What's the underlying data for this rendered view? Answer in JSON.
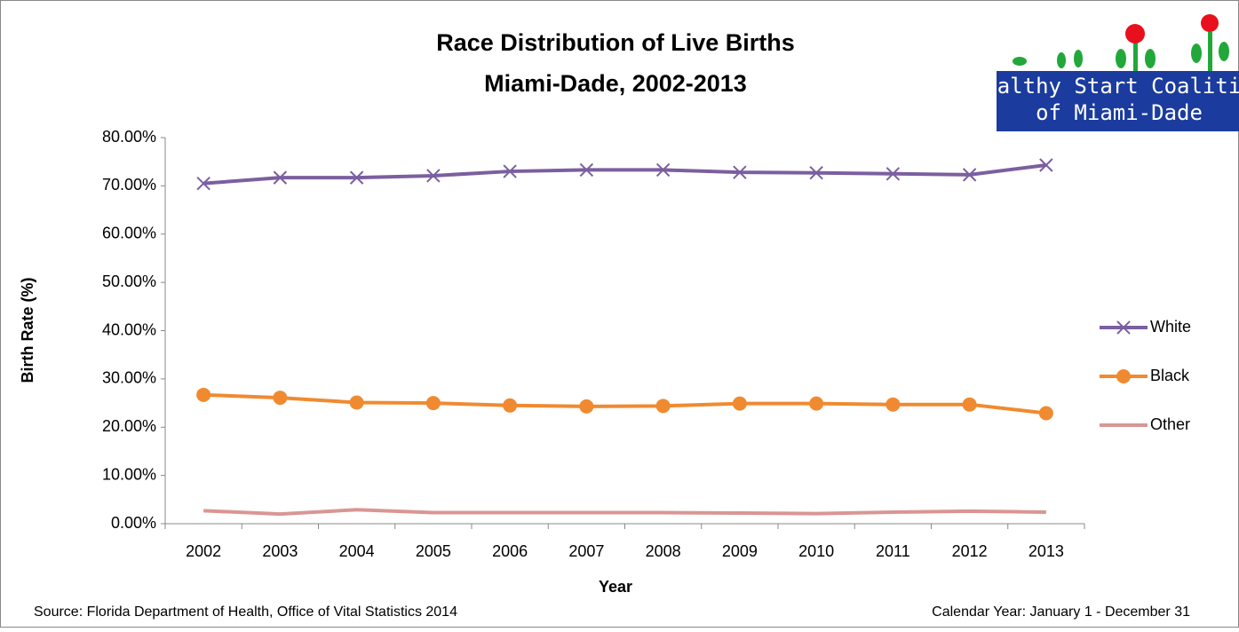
{
  "chart_data": {
    "type": "line",
    "title": "Race Distribution of Live Births",
    "subtitle": "Miami-Dade, 2002-2013",
    "x_label": "Year",
    "y_label": "Birth Rate (%)",
    "categories": [
      "2002",
      "2003",
      "2004",
      "2005",
      "2006",
      "2007",
      "2008",
      "2009",
      "2010",
      "2011",
      "2012",
      "2013"
    ],
    "series": [
      {
        "name": "White",
        "color": "#7b5fa0",
        "marker": "x",
        "values": [
          70.5,
          71.7,
          71.7,
          72.1,
          73.0,
          73.3,
          73.3,
          72.8,
          72.7,
          72.5,
          72.3,
          74.3
        ]
      },
      {
        "name": "Black",
        "color": "#f08a30",
        "marker": "circle",
        "values": [
          26.7,
          26.1,
          25.1,
          25.0,
          24.5,
          24.3,
          24.4,
          24.9,
          24.9,
          24.7,
          24.7,
          22.9
        ]
      },
      {
        "name": "Other",
        "color": "#d99694",
        "marker": "none",
        "values": [
          2.7,
          2.0,
          2.9,
          2.3,
          2.3,
          2.3,
          2.3,
          2.2,
          2.1,
          2.4,
          2.6,
          2.4
        ]
      }
    ],
    "ylim": [
      0,
      80
    ],
    "yticks": [
      {
        "value": 0,
        "label": "0.00%"
      },
      {
        "value": 10,
        "label": "10.00%"
      },
      {
        "value": 20,
        "label": "20.00%"
      },
      {
        "value": 30,
        "label": "30.00%"
      },
      {
        "value": 40,
        "label": "40.00%"
      },
      {
        "value": 50,
        "label": "50.00%"
      },
      {
        "value": 60,
        "label": "60.00%"
      },
      {
        "value": 70,
        "label": "70.00%"
      },
      {
        "value": 80,
        "label": "80.00%"
      }
    ],
    "grid": false,
    "legend": "right",
    "source": "Source: Florida Department of Health, Office of Vital Statistics 2014",
    "note": "Calendar Year: January 1 - December 31",
    "logo": [
      "Healthy Start Coalition",
      "of Miami-Dade"
    ]
  }
}
